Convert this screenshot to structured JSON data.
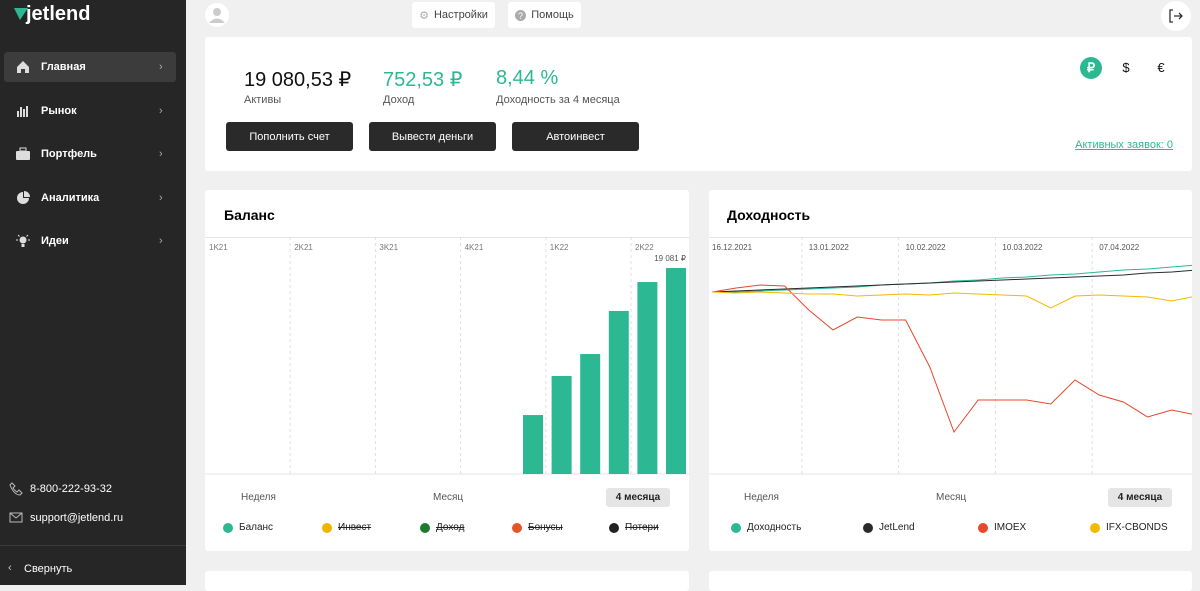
{
  "sidebar": {
    "logo": "jetlend",
    "nav": [
      "Главная",
      "Рынок",
      "Портфель",
      "Аналитика",
      "Идеи"
    ],
    "phone": "8-800-222-93-32",
    "email": "support@jetlend.ru",
    "collapse": "Свернуть"
  },
  "topbar": {
    "settings": "Настройки",
    "help": "Помощь"
  },
  "summary": {
    "stats": [
      {
        "value": "19 080,53 ₽",
        "label": "Активы"
      },
      {
        "value": "752,53 ₽",
        "label": "Доход"
      },
      {
        "value": "8,44 %",
        "label": "Доходность за 4 месяца"
      }
    ],
    "buttons": [
      "Пополнить счет",
      "Вывести деньги",
      "Автоинвест"
    ],
    "currencies": [
      "₽",
      "$",
      "€"
    ],
    "active_orders": "Активных заявок: 0"
  },
  "balance_chart": {
    "type": "bar",
    "title": "Баланс",
    "quarters": [
      "1K21",
      "2K21",
      "3K21",
      "4K21",
      "1K22",
      "2K22"
    ],
    "values": [
      5460,
      9080,
      11110,
      15100,
      17780,
      19081
    ],
    "value_labels": [
      null,
      null,
      null,
      null,
      null,
      "19 081 ₽"
    ],
    "color": "#2bb893",
    "ylim": [
      0,
      21950
    ],
    "periods": [
      "Неделя",
      "Месяц",
      "4 месяца"
    ],
    "active_period": 2,
    "legend": [
      {
        "name": "Баланс",
        "color": "#2bb893",
        "struck": false
      },
      {
        "name": "Инвест",
        "color": "#f0b400",
        "struck": true
      },
      {
        "name": "Доход",
        "color": "#1e7a2e",
        "struck": true
      },
      {
        "name": "Бонусы",
        "color": "#e8542a",
        "struck": true
      },
      {
        "name": "Потери",
        "color": "#222222",
        "struck": true
      }
    ]
  },
  "yield_chart": {
    "type": "line",
    "title": "Доходность",
    "categories": [
      "16.12.2021",
      null,
      null,
      null,
      "13.01.2022",
      null,
      null,
      null,
      "10.02.2022",
      null,
      null,
      null,
      "10.03.2022",
      null,
      null,
      null,
      "07.04.2022",
      null,
      null,
      null,
      null
    ],
    "ylim": [
      -182,
      55
    ],
    "series": [
      {
        "name": "Доходность",
        "color": "#2bb893",
        "values": [
          0,
          0,
          1,
          2,
          3,
          4,
          5,
          7,
          8,
          9,
          11,
          12,
          14,
          15,
          17,
          18,
          20,
          22,
          23,
          25,
          27
        ]
      },
      {
        "name": "JetLend",
        "color": "#2a2a2a",
        "values": [
          0,
          1,
          2,
          3,
          4,
          5,
          6,
          7,
          8,
          9,
          10,
          11,
          12,
          13,
          14,
          15,
          16,
          17,
          19,
          20,
          22
        ]
      },
      {
        "name": "IMOEX",
        "color": "#e8472a",
        "values": [
          0,
          4,
          7,
          6,
          -18,
          -38,
          -25,
          -28,
          -28,
          -75,
          -140,
          -108,
          -108,
          -108,
          -112,
          -88,
          -103,
          -110,
          -125,
          -118,
          -123
        ]
      },
      {
        "name": "IFX-CBONDS",
        "color": "#f5b800",
        "values": [
          0,
          -1,
          0,
          -1,
          -2,
          -2,
          -4,
          -3,
          -2,
          -3,
          -1,
          -2,
          -3,
          -4,
          -16,
          -4,
          -3,
          -4,
          -5,
          -9,
          -4
        ]
      }
    ],
    "periods": [
      "Неделя",
      "Месяц",
      "4 месяца"
    ],
    "active_period": 2
  }
}
